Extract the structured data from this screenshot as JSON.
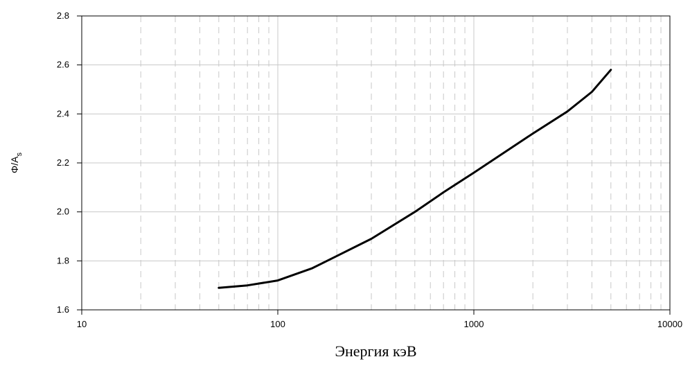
{
  "chart_data": {
    "type": "line",
    "title": "",
    "xlabel": "Энергия кэВ",
    "ylabel": {
      "main": "Φ/A",
      "subscript": "s"
    },
    "x_scale": "log",
    "xlim": [
      10,
      10000
    ],
    "ylim": [
      1.6,
      2.8
    ],
    "x_ticks": [
      10,
      100,
      1000,
      10000
    ],
    "x_tick_labels": [
      "10",
      "100",
      "1000",
      "10000"
    ],
    "y_ticks": [
      1.6,
      1.8,
      2.0,
      2.2,
      2.4,
      2.6,
      2.8
    ],
    "y_tick_labels": [
      "1.6",
      "1.8",
      "2.0",
      "2.2",
      "2.4",
      "2.6",
      "2.8"
    ],
    "grid": true,
    "series": [
      {
        "color": "#000000",
        "points": [
          {
            "x": 50,
            "y": 1.69
          },
          {
            "x": 70,
            "y": 1.7
          },
          {
            "x": 100,
            "y": 1.72
          },
          {
            "x": 150,
            "y": 1.77
          },
          {
            "x": 200,
            "y": 1.82
          },
          {
            "x": 300,
            "y": 1.89
          },
          {
            "x": 500,
            "y": 2.0
          },
          {
            "x": 700,
            "y": 2.08
          },
          {
            "x": 1000,
            "y": 2.16
          },
          {
            "x": 2000,
            "y": 2.32
          },
          {
            "x": 3000,
            "y": 2.41
          },
          {
            "x": 4000,
            "y": 2.49
          },
          {
            "x": 5000,
            "y": 2.58
          }
        ]
      }
    ]
  }
}
